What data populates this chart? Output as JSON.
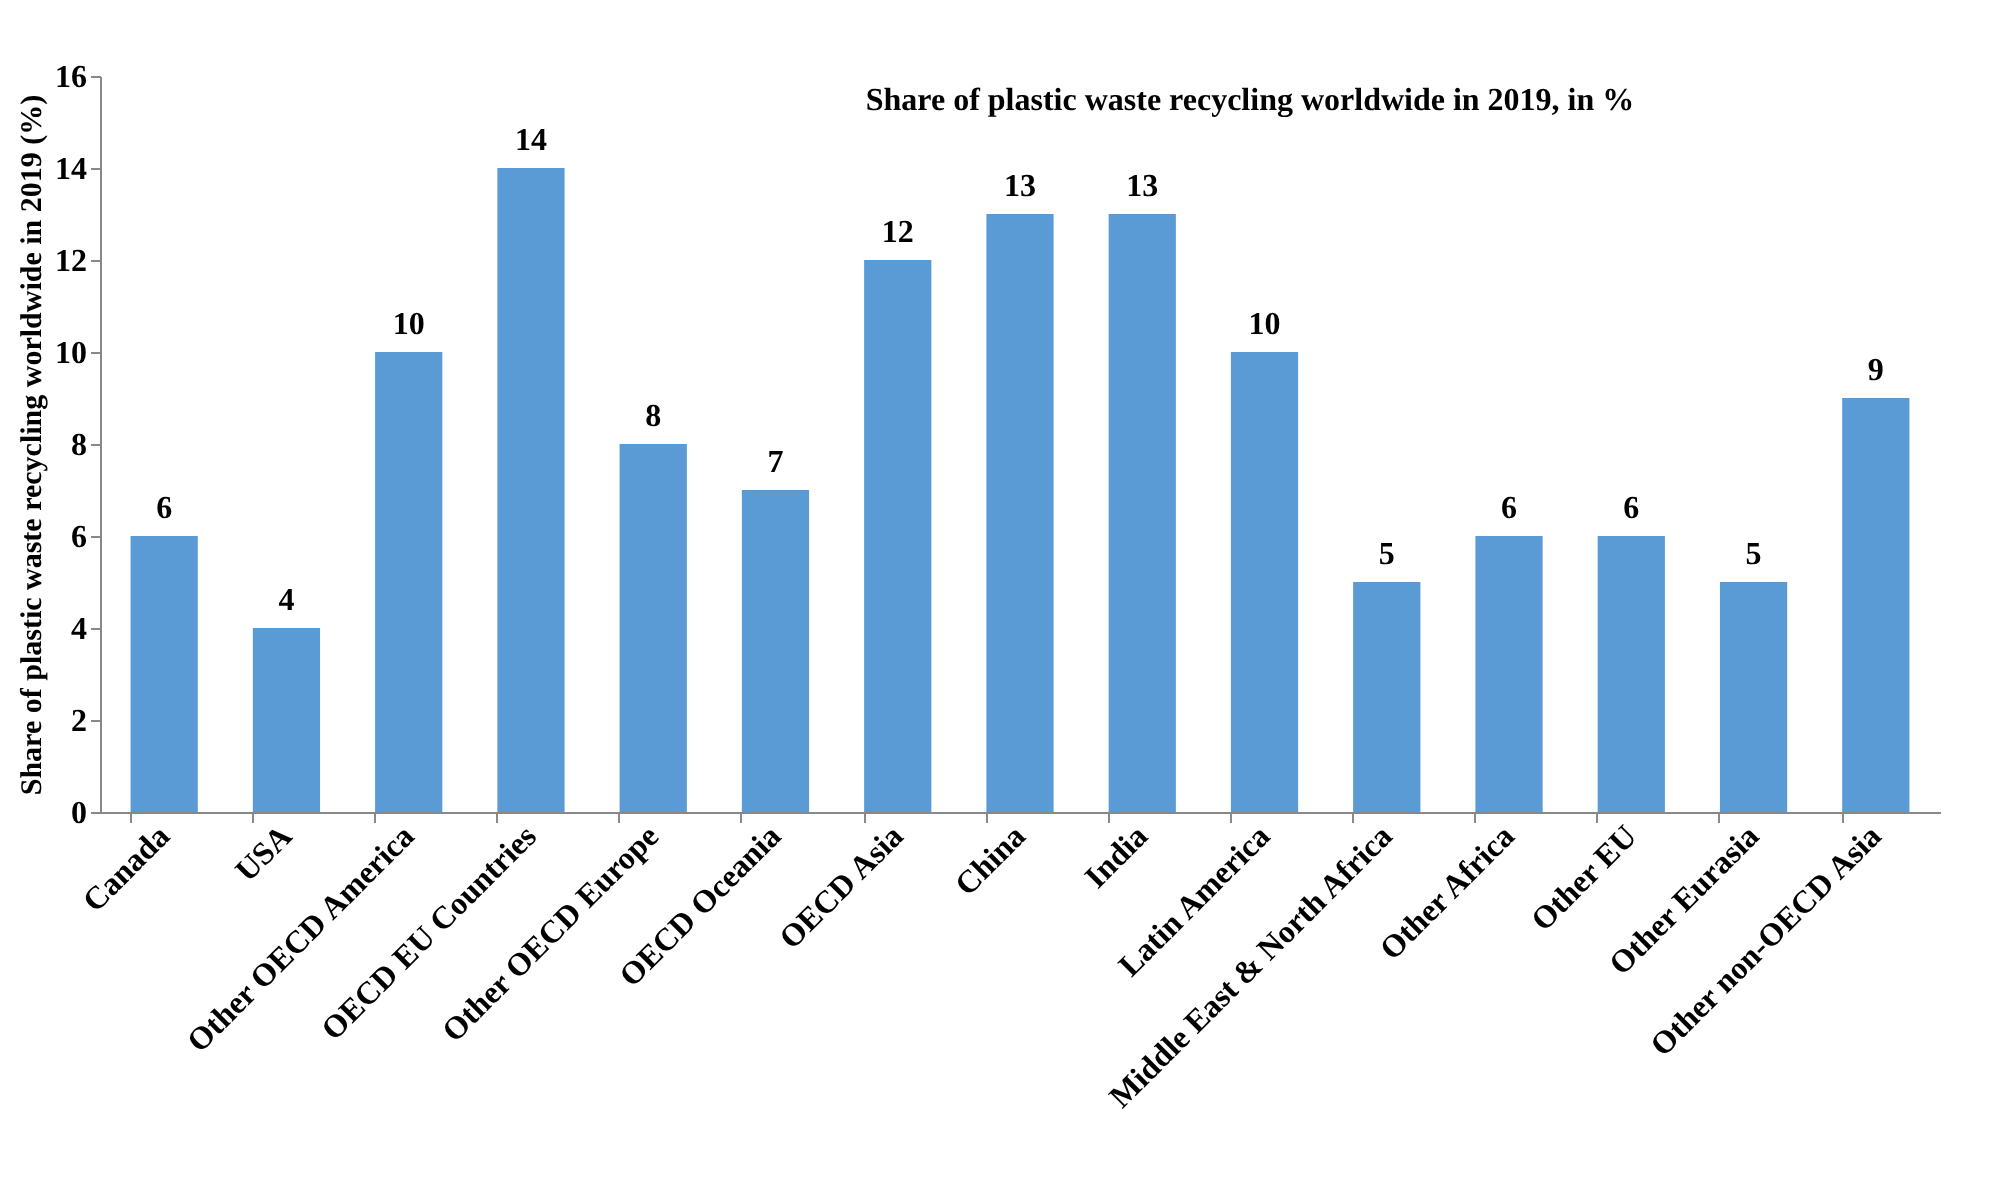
{
  "chart_data": {
    "type": "bar",
    "title": "Share of plastic waste recycling worldwide in 2019, in %",
    "ylabel": "Share of plastic waste recycling worldwide in 2019 (%)",
    "categories": [
      "Canada",
      "USA",
      "Other OECD America",
      "OECD EU Countries",
      "Other OECD Europe",
      "OECD Oceania",
      "OECD Asia",
      "China",
      "India",
      "Latin America",
      "Middle East & North Africa",
      "Other Africa",
      "Other EU",
      "Other Eurasia",
      "Other non-OECD Asia"
    ],
    "values": [
      6,
      4,
      10,
      14,
      8,
      7,
      12,
      13,
      13,
      10,
      5,
      6,
      6,
      5,
      9
    ],
    "color": "#5b9bd5",
    "ylim": [
      0,
      16
    ],
    "yticks": [
      0,
      2,
      4,
      6,
      8,
      10,
      12,
      14,
      16
    ],
    "grid": false,
    "data_labels": true
  }
}
